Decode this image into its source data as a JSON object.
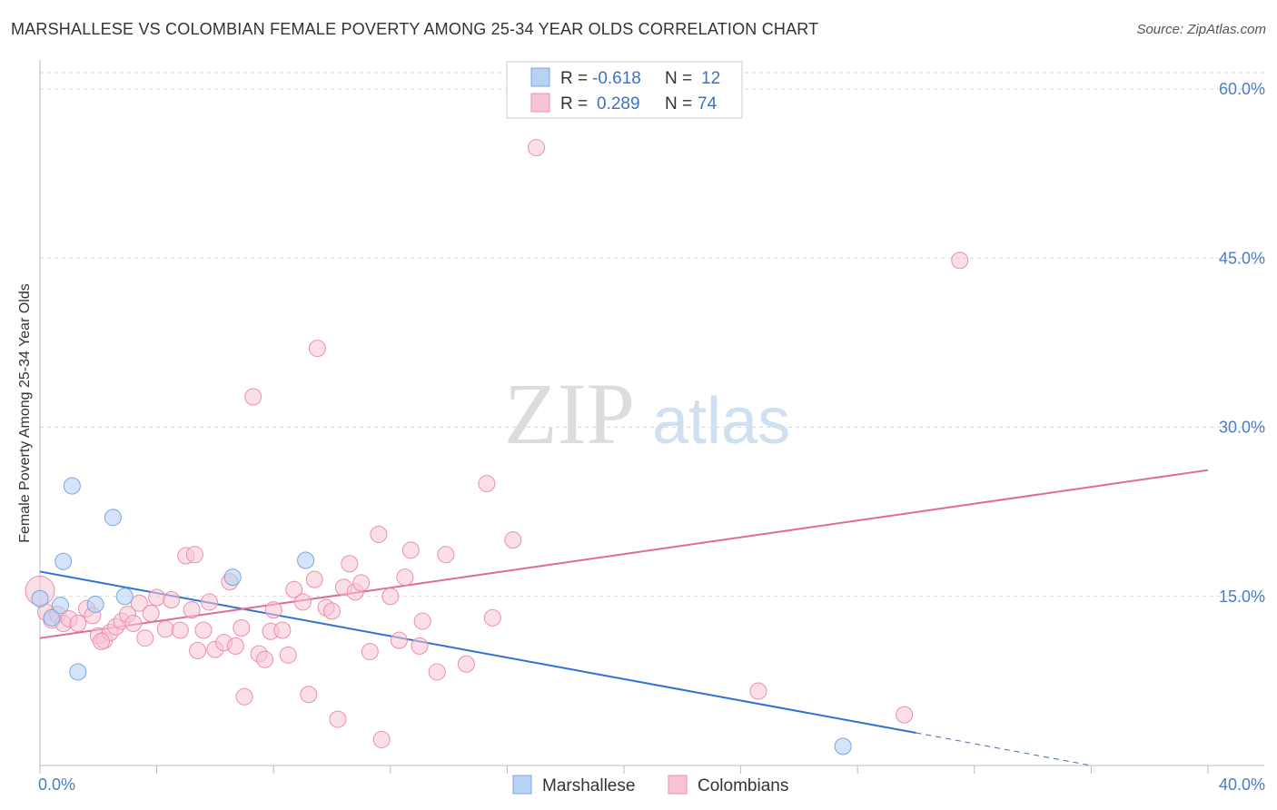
{
  "title": "MARSHALLESE VS COLOMBIAN FEMALE POVERTY AMONG 25-34 YEAR OLDS CORRELATION CHART",
  "source": "Source: ZipAtlas.com",
  "watermark": {
    "part1": "ZIP",
    "part2": "atlas"
  },
  "colors": {
    "marshallese_fill": "#b7d2f5",
    "marshallese_stroke": "#7aa6e0",
    "marshallese_line": "#2f72d0",
    "colombian_fill": "#f8c4d4",
    "colombian_stroke": "#eb8fab",
    "colombian_line": "#e06b95",
    "grid": "#d9d9d9",
    "tick_text": "#4a7cc7"
  },
  "legend": {
    "rows": [
      {
        "r_label": "R =",
        "r_value": "-0.618",
        "n_label": "N =",
        "n_value": "12"
      },
      {
        "r_label": "R =",
        "r_value": "0.289",
        "n_label": "N =",
        "n_value": "74"
      }
    ]
  },
  "chart_data": {
    "type": "scatter",
    "title": "MARSHALLESE VS COLOMBIAN FEMALE POVERTY AMONG 25-34 YEAR OLDS CORRELATION CHART",
    "xlabel": "",
    "ylabel": "Female Poverty Among 25-34 Year Olds",
    "xlim": [
      0,
      40
    ],
    "ylim": [
      0,
      60
    ],
    "x_tick_labels": [
      "0.0%",
      "40.0%"
    ],
    "y_ticks": [
      15,
      30,
      45,
      60
    ],
    "y_tick_labels": [
      "15.0%",
      "30.0%",
      "45.0%",
      "60.0%"
    ],
    "grid": true,
    "legend_placement": "top-center",
    "series": [
      {
        "name": "Marshallese",
        "R": -0.618,
        "N": 12,
        "trend": {
          "x0": 0,
          "y0": 17.2,
          "x1": 30.0,
          "y1": 2.9,
          "dashed_to_x": 36.0,
          "dashed_to_y": 0.0
        },
        "points": [
          [
            0.0,
            14.8
          ],
          [
            0.4,
            13.1
          ],
          [
            0.7,
            14.2
          ],
          [
            0.8,
            18.1
          ],
          [
            1.1,
            24.8
          ],
          [
            1.3,
            8.3
          ],
          [
            1.9,
            14.3
          ],
          [
            2.5,
            22.0
          ],
          [
            2.9,
            15.0
          ],
          [
            6.6,
            16.7
          ],
          [
            9.1,
            18.2
          ],
          [
            27.5,
            1.7
          ]
        ]
      },
      {
        "name": "Colombians",
        "R": 0.289,
        "N": 74,
        "trend": {
          "x0": 0,
          "y0": 11.3,
          "x1": 40.0,
          "y1": 26.2
        },
        "points": [
          [
            0.0,
            15.5
          ],
          [
            0.2,
            13.6
          ],
          [
            0.4,
            12.9
          ],
          [
            0.6,
            13.4
          ],
          [
            0.8,
            12.6
          ],
          [
            1.0,
            13.0
          ],
          [
            1.3,
            12.6
          ],
          [
            1.6,
            13.9
          ],
          [
            1.8,
            13.3
          ],
          [
            2.0,
            11.5
          ],
          [
            2.2,
            11.1
          ],
          [
            2.4,
            11.8
          ],
          [
            2.6,
            12.3
          ],
          [
            2.8,
            12.8
          ],
          [
            3.0,
            13.4
          ],
          [
            3.2,
            12.6
          ],
          [
            3.4,
            14.4
          ],
          [
            3.6,
            11.3
          ],
          [
            3.8,
            13.5
          ],
          [
            4.0,
            14.9
          ],
          [
            4.3,
            12.1
          ],
          [
            4.5,
            14.7
          ],
          [
            4.8,
            12.0
          ],
          [
            5.0,
            18.6
          ],
          [
            5.2,
            13.8
          ],
          [
            5.4,
            10.2
          ],
          [
            5.6,
            12.0
          ],
          [
            5.8,
            14.5
          ],
          [
            6.0,
            10.3
          ],
          [
            6.3,
            10.9
          ],
          [
            6.5,
            16.3
          ],
          [
            6.7,
            10.6
          ],
          [
            6.9,
            12.2
          ],
          [
            7.0,
            6.1
          ],
          [
            7.3,
            32.7
          ],
          [
            7.5,
            9.9
          ],
          [
            7.7,
            9.4
          ],
          [
            7.9,
            11.9
          ],
          [
            8.0,
            13.8
          ],
          [
            8.3,
            12.0
          ],
          [
            8.5,
            9.8
          ],
          [
            8.7,
            15.6
          ],
          [
            9.0,
            14.5
          ],
          [
            9.2,
            6.3
          ],
          [
            9.4,
            16.5
          ],
          [
            9.5,
            37.0
          ],
          [
            9.8,
            14.0
          ],
          [
            10.0,
            13.7
          ],
          [
            10.2,
            4.1
          ],
          [
            10.4,
            15.8
          ],
          [
            10.6,
            17.9
          ],
          [
            10.8,
            15.4
          ],
          [
            11.0,
            16.2
          ],
          [
            11.3,
            10.1
          ],
          [
            11.6,
            20.5
          ],
          [
            11.7,
            2.3
          ],
          [
            12.0,
            15.0
          ],
          [
            12.3,
            11.1
          ],
          [
            12.5,
            16.7
          ],
          [
            12.7,
            19.1
          ],
          [
            13.0,
            10.6
          ],
          [
            13.1,
            12.8
          ],
          [
            13.6,
            8.3
          ],
          [
            13.9,
            18.7
          ],
          [
            14.6,
            9.0
          ],
          [
            15.3,
            25.0
          ],
          [
            15.5,
            13.1
          ],
          [
            16.2,
            20.0
          ],
          [
            17.0,
            54.8
          ],
          [
            24.6,
            6.6
          ],
          [
            31.5,
            44.8
          ],
          [
            29.6,
            4.5
          ],
          [
            5.3,
            18.7
          ],
          [
            2.1,
            11.0
          ]
        ]
      }
    ]
  }
}
